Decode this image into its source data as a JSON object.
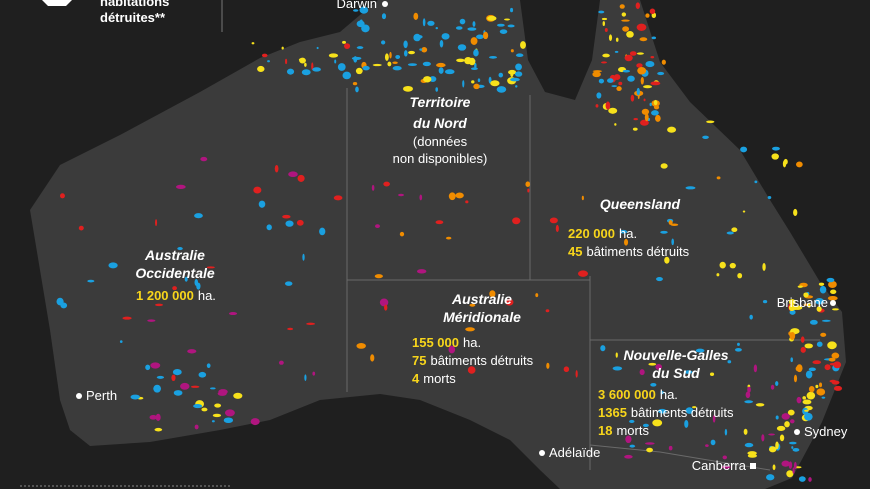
{
  "legend": {
    "label_lines": [
      "habitations",
      "détruites**"
    ]
  },
  "cities": [
    {
      "name": "Darwin"
    },
    {
      "name": "Perth"
    },
    {
      "name": "Adélaïde"
    },
    {
      "name": "Brisbane"
    },
    {
      "name": "Sydney"
    },
    {
      "name": "Canberra"
    }
  ],
  "regions": [
    {
      "name_lines": [
        "Territoire",
        "du Nord"
      ],
      "note_lines": [
        "(données",
        "non disponibles)"
      ]
    },
    {
      "name_lines": [
        "Queensland"
      ],
      "stats": [
        {
          "value": "220 000",
          "text": "ha."
        },
        {
          "value": "45",
          "text": "bâtiments détruits"
        }
      ]
    },
    {
      "name_lines": [
        "Australie",
        "Occidentale"
      ],
      "stats": [
        {
          "value": "1 200 000",
          "text": "ha."
        }
      ]
    },
    {
      "name_lines": [
        "Australie",
        "Méridionale"
      ],
      "stats": [
        {
          "value": "155 000",
          "text": "ha."
        },
        {
          "value": "75",
          "text": "bâtiments détruits"
        },
        {
          "value": "4",
          "text": "morts"
        }
      ]
    },
    {
      "name_lines": [
        "Nouvelle-Galles",
        "du Sud"
      ],
      "stats": [
        {
          "value": "3 600 000",
          "text": "ha."
        },
        {
          "value": "1365",
          "text": "bâtiments détruits"
        },
        {
          "value": "18",
          "text": "morts"
        }
      ]
    }
  ]
}
